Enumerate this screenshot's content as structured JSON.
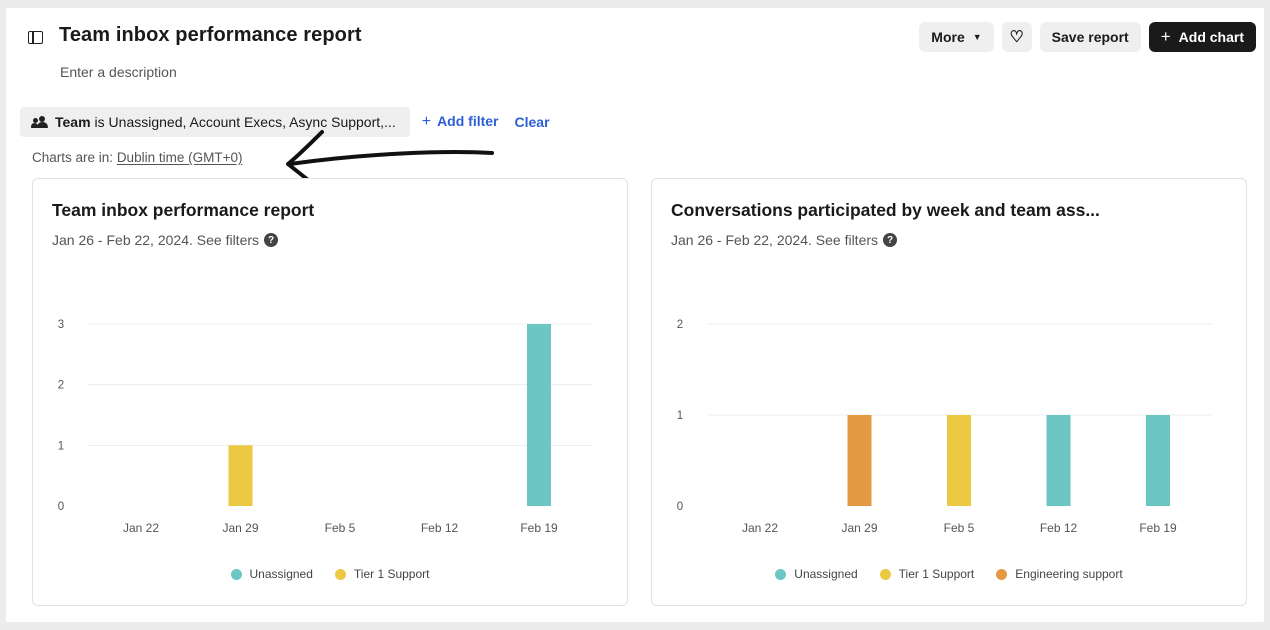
{
  "header": {
    "title": "Team inbox performance report",
    "description_placeholder": "Enter a description",
    "more_label": "More",
    "save_label": "Save report",
    "add_chart_label": "Add chart"
  },
  "filters": {
    "chip_key": "Team",
    "chip_value": "is Unassigned, Account Execs, Async Support,...",
    "add_filter_label": "Add filter",
    "clear_label": "Clear"
  },
  "timezone": {
    "prefix": "Charts are in:",
    "value": "Dublin time (GMT+0)"
  },
  "colors": {
    "Unassigned": "#6cc6c4",
    "Tier 1 Support": "#ebc942",
    "Engineering support": "#e39a42"
  },
  "charts": [
    {
      "title": "Team inbox performance report",
      "subtitle": "Jan 26 - Feb 22, 2024. See filters",
      "legend": [
        "Unassigned",
        "Tier 1 Support"
      ]
    },
    {
      "title": "Conversations participated by week and team ass...",
      "subtitle": "Jan 26 - Feb 22, 2024. See filters",
      "legend": [
        "Unassigned",
        "Tier 1 Support",
        "Engineering support"
      ]
    }
  ],
  "chart_data": [
    {
      "type": "bar",
      "categories": [
        "Jan 22",
        "Jan 29",
        "Feb 5",
        "Feb 12",
        "Feb 19"
      ],
      "yticks": [
        0,
        1,
        2,
        3
      ],
      "ylim": [
        0,
        3
      ],
      "grid": true,
      "legend_position": "bottom",
      "series": [
        {
          "name": "Unassigned",
          "values": [
            0,
            0,
            0,
            0,
            3
          ]
        },
        {
          "name": "Tier 1 Support",
          "values": [
            0,
            1,
            0,
            0,
            0
          ]
        }
      ]
    },
    {
      "type": "bar",
      "categories": [
        "Jan 22",
        "Jan 29",
        "Feb 5",
        "Feb 12",
        "Feb 19"
      ],
      "yticks": [
        0,
        1,
        2
      ],
      "ylim": [
        0,
        2
      ],
      "grid": true,
      "legend_position": "bottom",
      "series": [
        {
          "name": "Unassigned",
          "values": [
            0,
            0,
            0,
            1,
            1
          ]
        },
        {
          "name": "Tier 1 Support",
          "values": [
            0,
            0,
            1,
            0,
            0
          ]
        },
        {
          "name": "Engineering support",
          "values": [
            0,
            1,
            0,
            0,
            0
          ]
        }
      ]
    }
  ]
}
